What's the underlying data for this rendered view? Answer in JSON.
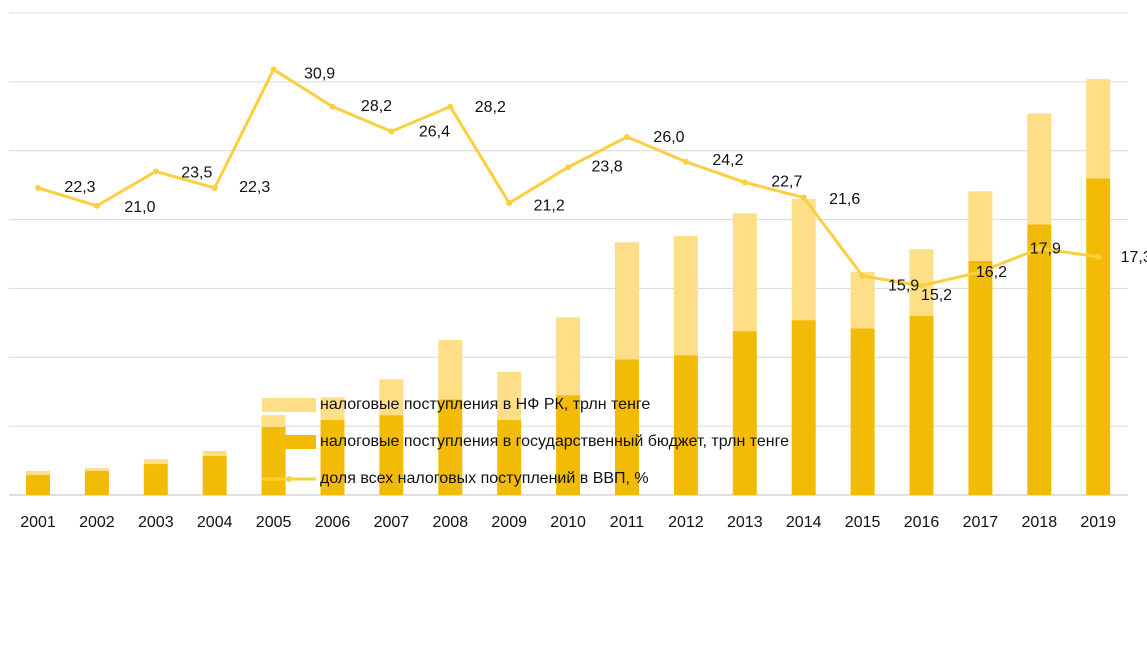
{
  "chart_data": {
    "type": "bar_line",
    "categories": [
      "2001",
      "2002",
      "2003",
      "2004",
      "2005",
      "2006",
      "2007",
      "2008",
      "2009",
      "2010",
      "2011",
      "2012",
      "2013",
      "2014",
      "2015",
      "2016",
      "2017",
      "2018",
      "2019"
    ],
    "series": [
      {
        "name": "налоговые поступления в государственный бюджет, трлн тенге",
        "color": "#f2bb05",
        "stack": true,
        "values": [
          0.29,
          0.35,
          0.45,
          0.57,
          0.99,
          1.09,
          1.16,
          1.39,
          1.09,
          1.45,
          1.97,
          2.03,
          2.38,
          2.54,
          2.42,
          2.6,
          3.4,
          3.93,
          4.6
        ]
      },
      {
        "name": "налоговые поступления в НФ РК, трлн тенге",
        "color": "#fede87",
        "stack": true,
        "values": [
          0.06,
          0.04,
          0.07,
          0.07,
          0.17,
          0.33,
          0.52,
          0.86,
          0.7,
          1.13,
          1.7,
          1.73,
          1.71,
          1.76,
          0.82,
          0.97,
          1.01,
          1.61,
          1.44
        ]
      },
      {
        "name": "доля всех налоговых поступлений в ВВП, %",
        "color": "#fbcf3f",
        "axis": "y2",
        "type": "line",
        "values": [
          22.3,
          21.0,
          23.5,
          22.3,
          30.9,
          28.2,
          26.4,
          28.2,
          21.2,
          23.8,
          26.0,
          24.2,
          22.7,
          21.6,
          15.9,
          15.2,
          16.2,
          17.9,
          17.3
        ],
        "value_labels": [
          "22,3",
          "21,0",
          "23,5",
          "22,3",
          "30,9",
          "28,2",
          "26,4",
          "28,2",
          "21,2",
          "23,8",
          "26,0",
          "24,2",
          "22,7",
          "21,6",
          "15,9",
          "15,2",
          "16,2",
          "17,9",
          "17,3"
        ]
      }
    ],
    "ylim": [
      0,
      7
    ],
    "yticks": [
      0,
      1,
      2,
      3,
      4,
      5,
      6,
      7
    ],
    "y2lim": [
      0,
      35
    ],
    "grid": true
  }
}
